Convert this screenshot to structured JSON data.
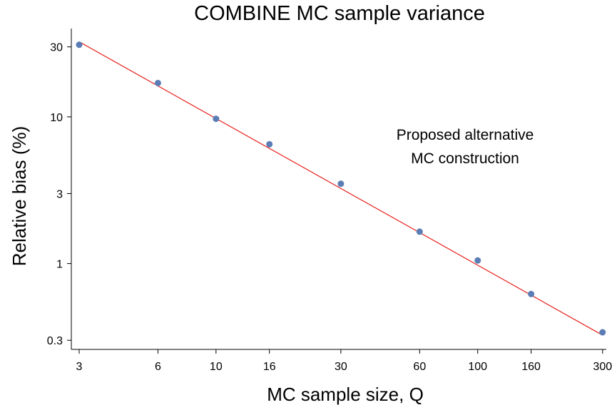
{
  "chart_data": {
    "type": "scatter",
    "title": "COMBINE MC sample variance",
    "xlabel": "MC sample size, Q",
    "ylabel": "Relative bias (%)",
    "x_scale": "log",
    "y_scale": "log",
    "xlim": [
      2.8,
      310
    ],
    "ylim": [
      0.26,
      40
    ],
    "x_ticks": [
      3,
      6,
      10,
      16,
      30,
      60,
      100,
      160,
      300
    ],
    "x_tick_labels": [
      "3",
      "6",
      "10",
      "16",
      "30",
      "60",
      "100",
      "160",
      "300"
    ],
    "y_ticks": [
      0.3,
      1,
      3,
      10,
      30
    ],
    "y_tick_labels": [
      "0.3",
      "1",
      "3",
      "10",
      "30"
    ],
    "grid": false,
    "annotation": [
      "Proposed alternative",
      "MC construction"
    ],
    "series": [
      {
        "type": "scatter",
        "x": [
          3,
          6,
          10,
          16,
          30,
          60,
          100,
          160,
          300
        ],
        "y": [
          31,
          17,
          9.7,
          6.5,
          3.5,
          1.65,
          1.05,
          0.62,
          0.34
        ],
        "color": "#5b7db5"
      },
      {
        "type": "line",
        "x": [
          3,
          300
        ],
        "y": [
          32.5,
          0.325
        ],
        "color": "#e8201c"
      }
    ]
  }
}
